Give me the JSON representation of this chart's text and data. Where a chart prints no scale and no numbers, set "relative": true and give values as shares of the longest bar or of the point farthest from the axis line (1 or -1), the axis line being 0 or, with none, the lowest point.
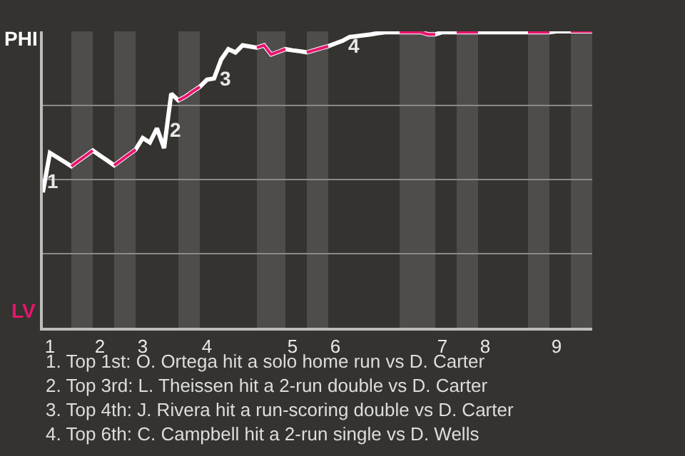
{
  "chart_data": {
    "type": "line",
    "relative": true,
    "categories": [
      null,
      "1",
      null,
      null,
      null,
      null,
      null,
      null,
      "2",
      null,
      null,
      null,
      null,
      null,
      "3",
      null,
      null,
      null,
      null,
      null,
      null,
      null,
      null,
      "4",
      null,
      null,
      null,
      null,
      null,
      null,
      null,
      null,
      null,
      null,
      null,
      "5",
      null,
      null,
      null,
      null,
      null,
      "6",
      null,
      null,
      null,
      null,
      null,
      null,
      null,
      null,
      null,
      null,
      null,
      null,
      null,
      null,
      "7",
      null,
      null,
      null,
      null,
      null,
      "8",
      null,
      null,
      null,
      null,
      null,
      null,
      null,
      null,
      null,
      "9",
      null,
      null,
      null,
      null,
      null
    ],
    "grid": "y",
    "marker": "none",
    "line_style": "solid",
    "series": [
      {
        "color": "#ffffff",
        "values": [
          0.457,
          0.59,
          0.575,
          0.56,
          0.545,
          0.563,
          0.58,
          0.598,
          0.581,
          0.565,
          0.548,
          0.566,
          0.584,
          0.601,
          0.64,
          0.625,
          0.673,
          0.606,
          0.79,
          0.767,
          0.78,
          0.797,
          0.813,
          0.837,
          0.841,
          0.905,
          0.94,
          0.929,
          0.953,
          0.949,
          0.945,
          0.953,
          0.922,
          0.931,
          0.94,
          0.936,
          0.933,
          0.929,
          0.936,
          0.943,
          0.95,
          0.959,
          0.968,
          0.981,
          0.984,
          0.987,
          0.99,
          0.994,
          0.997,
          0.997,
          0.997,
          0.997,
          0.997,
          0.997,
          0.99,
          0.99,
          0.997,
          0.997,
          0.997,
          0.997,
          0.997,
          0.997,
          0.997,
          0.997,
          0.997,
          0.997,
          0.997,
          0.997,
          0.997,
          0.997,
          0.997,
          0.997,
          1,
          1,
          1,
          1,
          1,
          1
        ]
      },
      {
        "color": "#e6156e",
        "values": [
          null,
          null,
          null,
          null,
          0.545,
          0.563,
          0.58,
          0.598,
          null,
          null,
          0.548,
          0.566,
          0.584,
          0.601,
          null,
          null,
          null,
          null,
          null,
          0.767,
          0.78,
          0.797,
          0.813,
          null,
          null,
          null,
          null,
          null,
          null,
          null,
          0.945,
          0.953,
          0.922,
          0.931,
          0.94,
          null,
          null,
          0.929,
          0.936,
          0.943,
          0.95,
          null,
          null,
          null,
          null,
          null,
          null,
          null,
          null,
          null,
          0.997,
          0.997,
          0.997,
          0.997,
          0.99,
          0.99,
          null,
          null,
          0.997,
          0.997,
          0.997,
          0.997,
          null,
          null,
          null,
          null,
          null,
          null,
          0.997,
          0.997,
          0.997,
          0.997,
          null,
          null,
          1,
          1,
          1,
          1
        ]
      }
    ],
    "annotations": [
      "PHI",
      "LV",
      "1",
      "2",
      "3",
      "4",
      "1. Top 1st: O. Ortega hit a solo home run vs D. Carter",
      "2. Top 3rd: L. Theissen hit a 2-run double vs D. Carter",
      "3. Top 4th: J. Rivera hit a run-scoring double vs D. Carter",
      "4. Top 6th: C. Campbell hit a 2-run single vs D. Wells"
    ]
  }
}
